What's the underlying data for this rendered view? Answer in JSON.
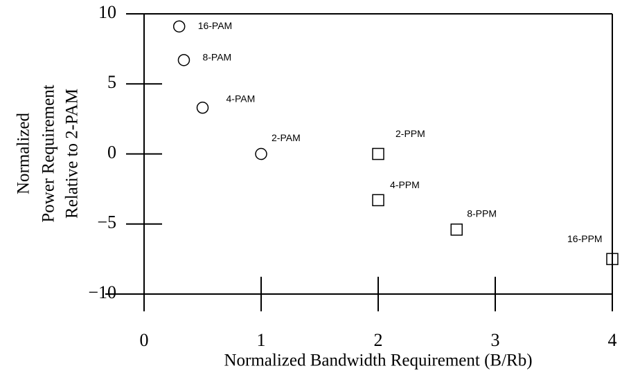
{
  "chart_data": {
    "type": "scatter",
    "xlabel": "Normalized Bandwidth Requirement (B/Rb)",
    "ylabel": [
      "Normalized",
      "Power Requirement",
      "Relative to 2-PAM"
    ],
    "xlim": [
      0,
      4
    ],
    "xticks": [
      0,
      1,
      2,
      3,
      4
    ],
    "ylim": [
      -10,
      10
    ],
    "yticks": [
      {
        "value": -10,
        "label": "−10"
      },
      {
        "value": -5,
        "label": "−5"
      },
      0,
      5,
      10
    ],
    "series": [
      {
        "marker": "circle",
        "color": "#000000",
        "x": [
          0.3,
          0.34,
          0.5,
          1.0
        ],
        "values": [
          9.1,
          6.7,
          3.3,
          0
        ],
        "labels": [
          "16-PAM",
          "8-PAM",
          "4-PAM",
          "2-PAM"
        ]
      },
      {
        "marker": "square",
        "color": "#000000",
        "x": [
          2,
          2,
          2.67,
          4
        ],
        "values": [
          0,
          -3.3,
          -5.4,
          -7.5
        ],
        "labels": [
          "2-PPM",
          "4-PPM",
          "8-PPM",
          "16-PPM"
        ]
      }
    ]
  }
}
